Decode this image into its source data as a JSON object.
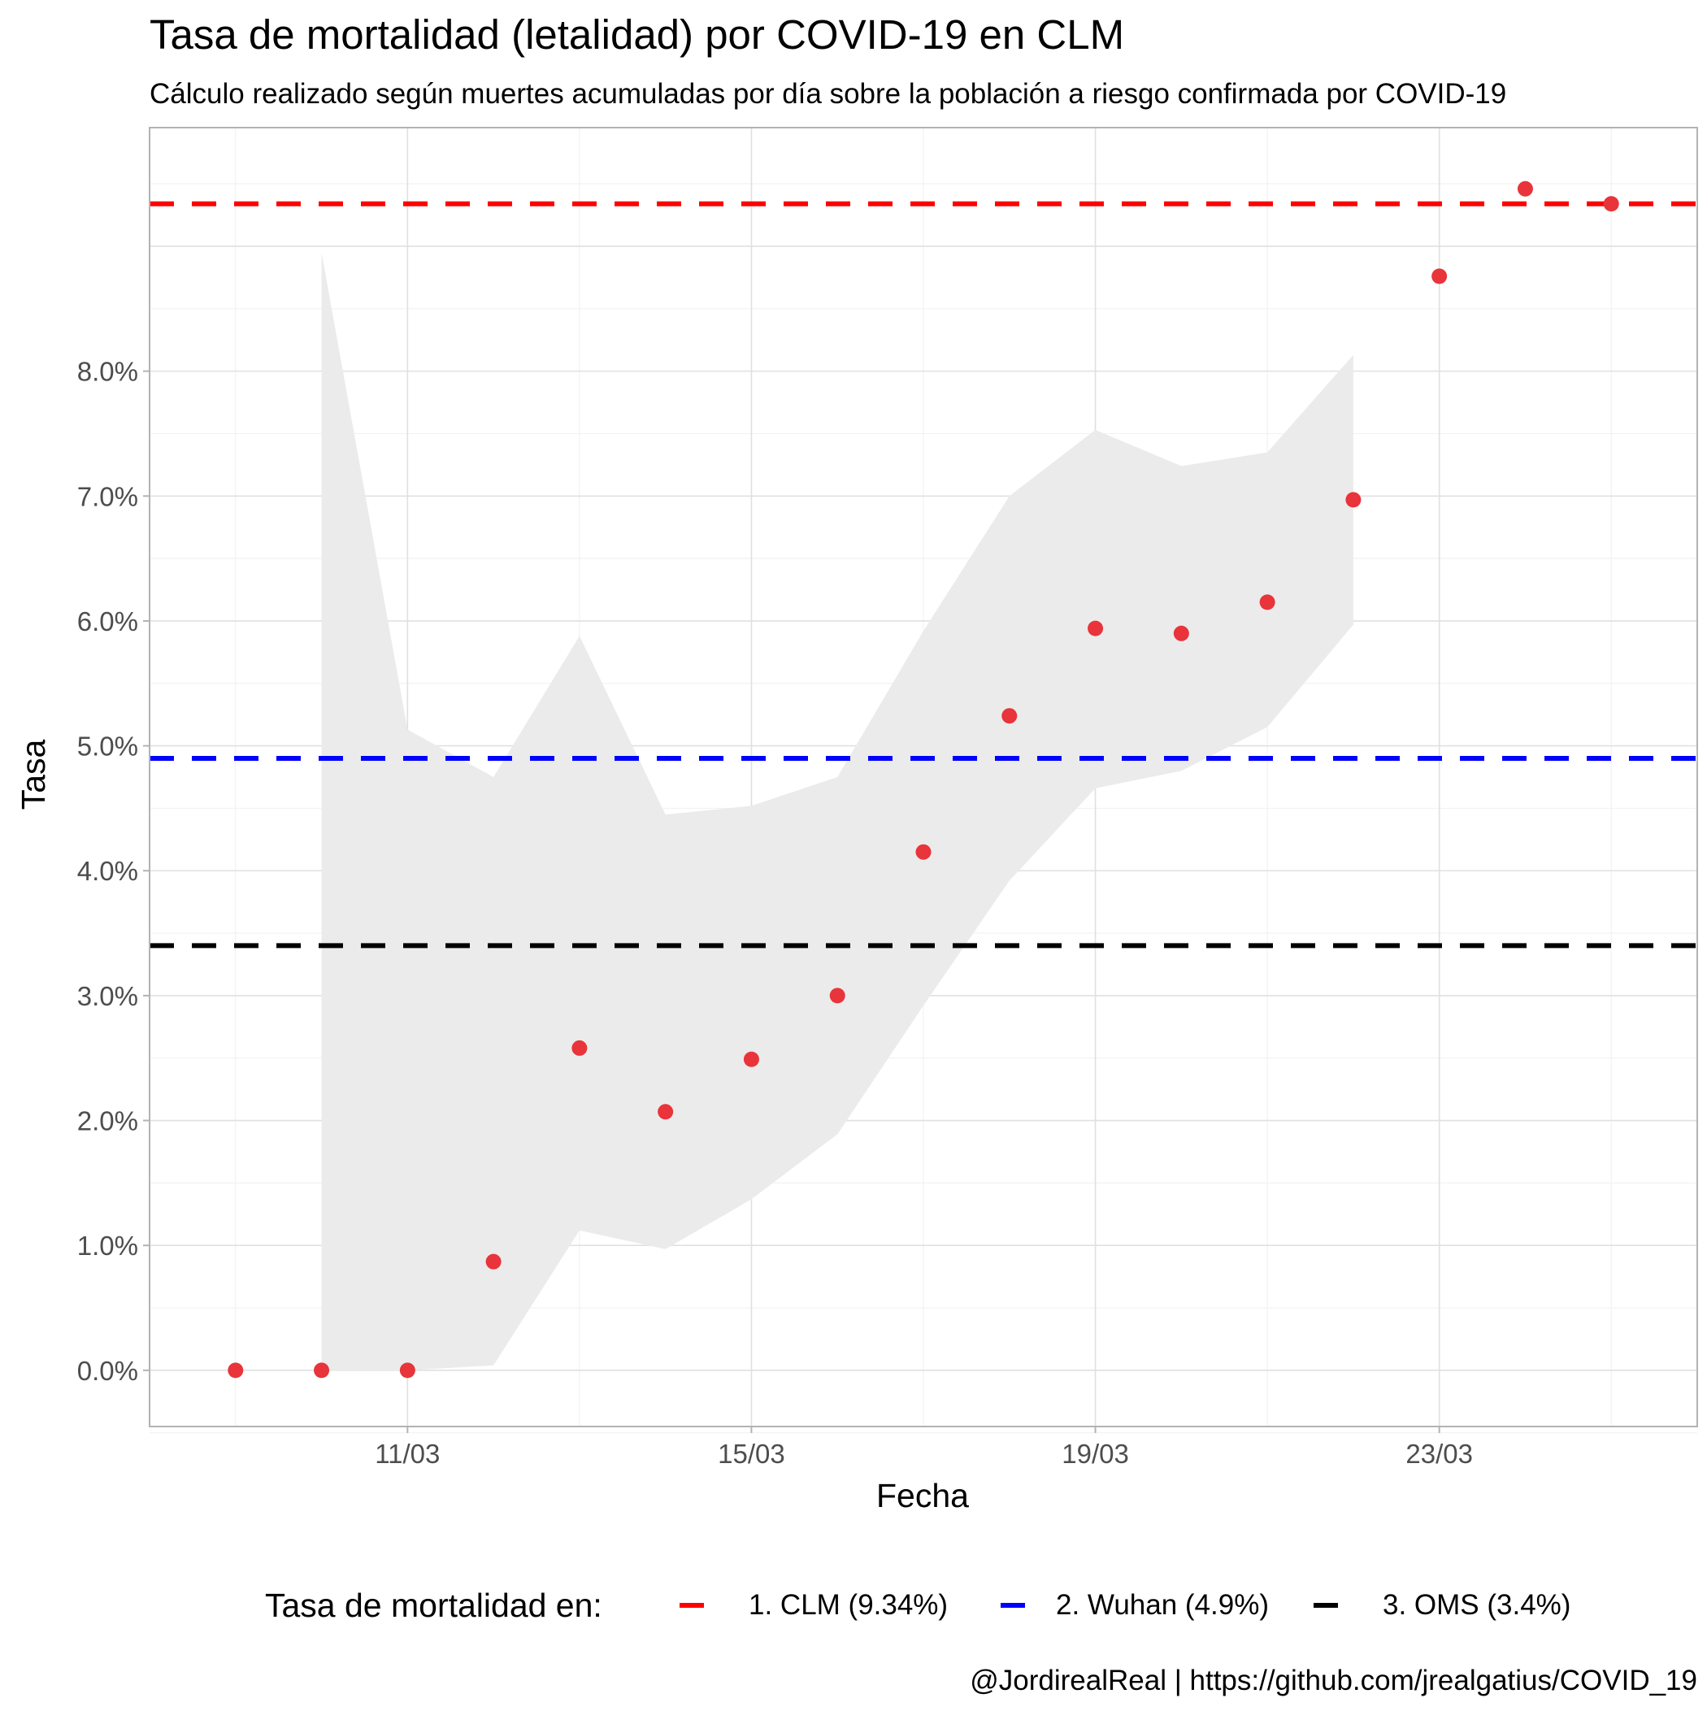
{
  "chart_data": {
    "type": "scatter",
    "title": "Tasa de mortalidad (letalidad) por COVID-19 en CLM",
    "subtitle": "Cálculo realizado según muertes acumuladas por día sobre la población a riesgo confirmada por COVID-19",
    "xlabel": "Fecha",
    "ylabel": "Tasa",
    "caption": "@JordirealReal | https://github.com/jrealgatius/COVID_19",
    "x_ticks": [
      "11/03",
      "15/03",
      "19/03",
      "23/03"
    ],
    "y_ticks": [
      "0.0%",
      "1.0%",
      "2.0%",
      "3.0%",
      "4.0%",
      "5.0%",
      "6.0%",
      "7.0%",
      "8.0%"
    ],
    "ylim": [
      -0.45,
      9.95
    ],
    "xlim": [
      "2020-03-08",
      "2020-03-26"
    ],
    "grid": true,
    "legend_position": "bottom",
    "x": [
      "2020-03-09",
      "2020-03-10",
      "2020-03-11",
      "2020-03-12",
      "2020-03-13",
      "2020-03-14",
      "2020-03-15",
      "2020-03-16",
      "2020-03-17",
      "2020-03-18",
      "2020-03-19",
      "2020-03-20",
      "2020-03-21",
      "2020-03-22",
      "2020-03-23",
      "2020-03-24",
      "2020-03-25"
    ],
    "series": [
      {
        "values": [
          0.0,
          0.0,
          0.0,
          0.87,
          2.58,
          2.07,
          2.49,
          3.0,
          4.15,
          5.24,
          5.94,
          5.9,
          6.15,
          6.97,
          8.76,
          9.46,
          9.34
        ],
        "color": "#E8343A"
      }
    ],
    "ribbon": {
      "x": [
        "2020-03-10",
        "2020-03-11",
        "2020-03-12",
        "2020-03-13",
        "2020-03-14",
        "2020-03-15",
        "2020-03-16",
        "2020-03-17",
        "2020-03-18",
        "2020-03-19",
        "2020-03-20",
        "2020-03-21",
        "2020-03-22"
      ],
      "lower": [
        0.0,
        0.0,
        0.04,
        1.12,
        0.97,
        1.37,
        1.89,
        2.92,
        3.92,
        4.66,
        4.8,
        5.15,
        5.97
      ],
      "upper": [
        8.95,
        5.13,
        4.75,
        5.88,
        4.45,
        4.52,
        4.75,
        5.92,
        7.0,
        7.53,
        7.24,
        7.35,
        8.13
      ],
      "color": "#EBEBEB"
    },
    "reference_lines": [
      {
        "label": "1. CLM (9.34%)",
        "value": 9.34,
        "color": "#FF0000"
      },
      {
        "label": "2. Wuhan (4.9%)",
        "value": 4.9,
        "color": "#0000FF"
      },
      {
        "label": "3. OMS (3.4%)",
        "value": 3.4,
        "color": "#000000"
      }
    ],
    "legend": {
      "title": "Tasa de mortalidad en:"
    }
  }
}
